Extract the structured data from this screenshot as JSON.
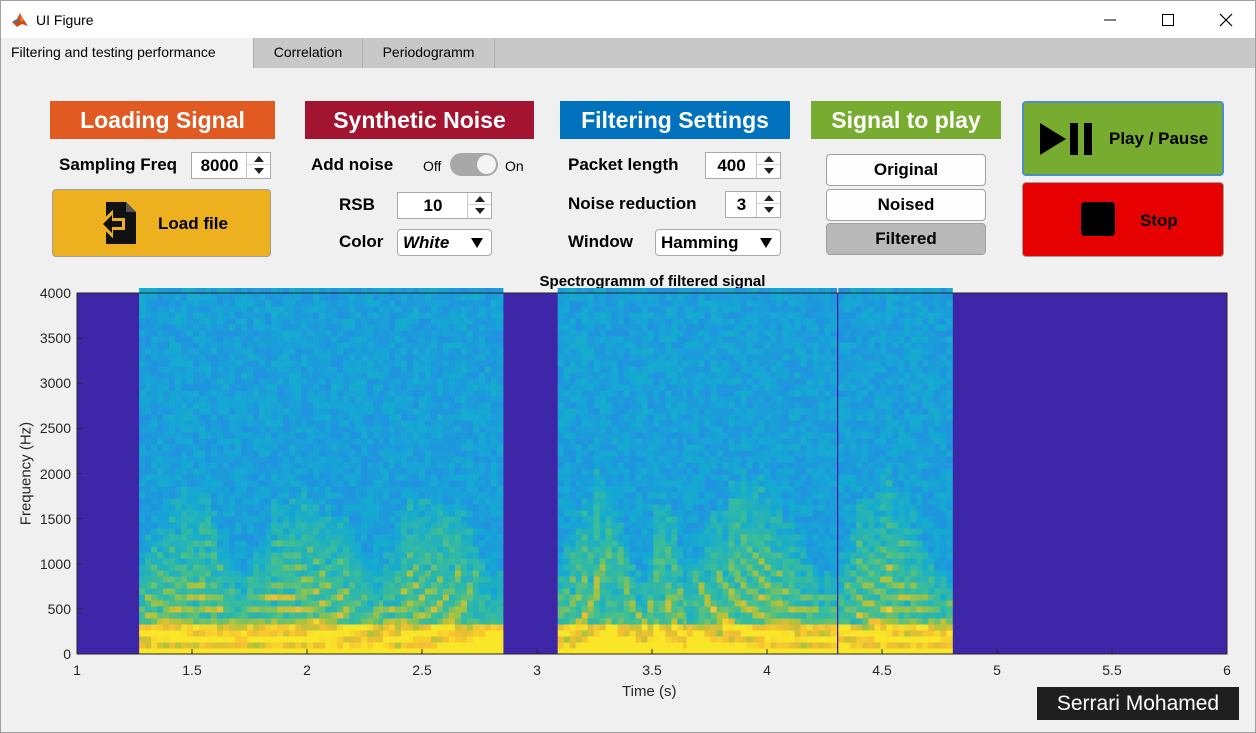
{
  "window": {
    "title": "UI Figure",
    "controls": [
      "minimize-icon",
      "maximize-icon",
      "close-icon"
    ]
  },
  "tabs": [
    {
      "label": "Filtering and testing performance",
      "active": true
    },
    {
      "label": "Correlation",
      "active": false
    },
    {
      "label": "Periodogramm",
      "active": false
    }
  ],
  "loading": {
    "header": "Loading Signal",
    "header_color": "#e05a22",
    "sampling_label": "Sampling Freq",
    "sampling_value": "8000",
    "load_button": "Load file",
    "load_button_color": "#edb120",
    "load_icon": "file-import-icon"
  },
  "noise": {
    "header": "Synthetic Noise",
    "header_color": "#a2142f",
    "add_noise_label": "Add noise",
    "toggle_off": "Off",
    "toggle_on": "On",
    "toggle_state": "on",
    "rsb_label": "RSB",
    "rsb_value": "10",
    "color_label": "Color",
    "color_value": "White"
  },
  "filtering": {
    "header": "Filtering Settings",
    "header_color": "#0072bd",
    "packet_label": "Packet length",
    "packet_value": "400",
    "noise_reduction_label": "Noise reduction",
    "noise_reduction_value": "3",
    "window_label": "Window",
    "window_value": "Hamming"
  },
  "playback": {
    "header": "Signal to play",
    "header_color": "#77ac30",
    "options": [
      {
        "label": "Original",
        "selected": false
      },
      {
        "label": "Noised",
        "selected": false
      },
      {
        "label": "Filtered",
        "selected": true
      }
    ],
    "play_label": "Play / Pause",
    "play_color": "#77ac30",
    "play_icon": "play-pause-icon",
    "stop_label": "Stop",
    "stop_color": "#e60000",
    "stop_icon": "stop-icon"
  },
  "chart_data": {
    "type": "heatmap",
    "title": "Spectrogramm of filtered signal",
    "xlabel": "Time (s)",
    "ylabel": "Frequency (Hz)",
    "xlim": [
      1,
      6
    ],
    "ylim": [
      0,
      4000
    ],
    "xticks": [
      1,
      1.5,
      2,
      2.5,
      3,
      3.5,
      4,
      4.5,
      5,
      5.5,
      6
    ],
    "yticks": [
      0,
      500,
      1000,
      1500,
      2000,
      2500,
      3000,
      3500,
      4000
    ],
    "colormap": "parula",
    "background_color": "#3e26a8",
    "voiced_segments": [
      {
        "start": 1.27,
        "end": 1.74
      },
      {
        "start": 1.74,
        "end": 2.33
      },
      {
        "start": 2.33,
        "end": 2.84
      },
      {
        "start": 3.09,
        "end": 3.48
      },
      {
        "start": 3.48,
        "end": 3.65
      },
      {
        "start": 3.65,
        "end": 4.29
      },
      {
        "start": 4.31,
        "end": 4.79
      }
    ]
  },
  "footer": {
    "author": "Serrari Mohamed"
  }
}
